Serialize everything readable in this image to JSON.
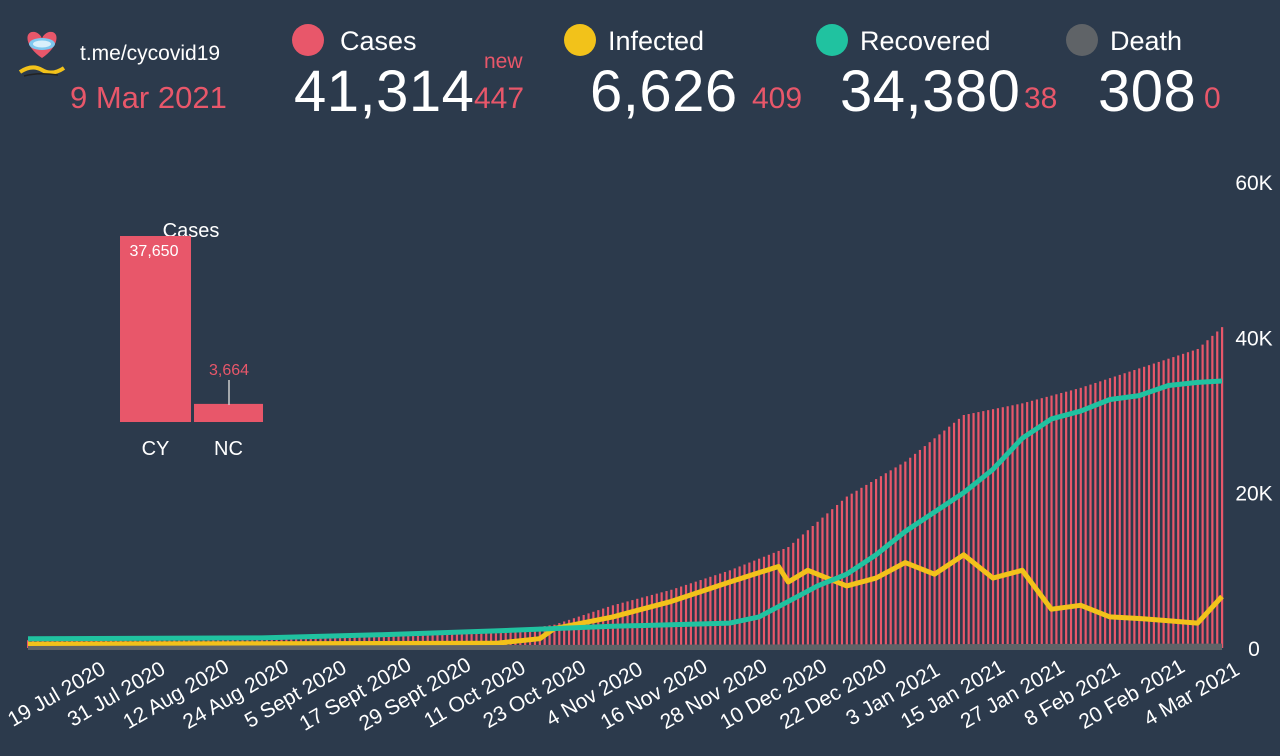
{
  "header": {
    "channel": "t.me/cycovid19",
    "date": "9 Mar 2021",
    "new_label": "new"
  },
  "stats": [
    {
      "label": "Cases",
      "value": "41,314",
      "new": "447",
      "color": "#e8576a"
    },
    {
      "label": "Infected",
      "value": "6,626",
      "new": "409",
      "color": "#f2c21a"
    },
    {
      "label": "Recovered",
      "value": "34,380",
      "new": "38",
      "color": "#20c2a0"
    },
    {
      "label": "Death",
      "value": "308",
      "new": "0",
      "color": "#5f6367"
    }
  ],
  "chart_data": [
    {
      "type": "bar",
      "title": "Cases",
      "categories": [
        "CY",
        "NC"
      ],
      "values": [
        37650,
        3664
      ],
      "value_labels": [
        "37,650",
        "3,664"
      ],
      "color": "#e8576a"
    },
    {
      "type": "bar+line",
      "y_ticks": [
        "0",
        "20K",
        "40K",
        "60K"
      ],
      "ylim": [
        0,
        60000
      ],
      "y_axis_side": "right",
      "x_tick_labels": [
        "19 Jul 2020",
        "31 Jul 2020",
        "12 Aug 2020",
        "24 Aug 2020",
        "5 Sept 2020",
        "17 Sept 2020",
        "29 Sept 2020",
        "11 Oct 2020",
        "23 Oct 2020",
        "4 Nov 2020",
        "16 Nov 2020",
        "28 Nov 2020",
        "10 Dec 2020",
        "22 Dec 2020",
        "3 Jan 2021",
        "15 Jan 2021",
        "27 Jan 2021",
        "8 Feb 2021",
        "20 Feb 2021",
        "4 Mar 2021"
      ],
      "x_start": "2020-07-07",
      "x_end": "2021-03-09",
      "series": [
        {
          "name": "Cases",
          "kind": "bar",
          "color": "#e8576a",
          "dates": [
            "2020-07-07",
            "2020-07-31",
            "2020-08-24",
            "2020-09-17",
            "2020-10-11",
            "2020-10-23",
            "2020-11-04",
            "2020-11-16",
            "2020-11-28",
            "2020-12-10",
            "2020-12-22",
            "2021-01-03",
            "2021-01-15",
            "2021-01-27",
            "2021-02-08",
            "2021-02-20",
            "2021-03-04",
            "2021-03-09"
          ],
          "values": [
            1000,
            1100,
            1300,
            1550,
            1900,
            3000,
            5500,
            7500,
            10000,
            13000,
            19500,
            24000,
            30000,
            31500,
            33500,
            36000,
            38500,
            41314
          ]
        },
        {
          "name": "Infected",
          "kind": "line",
          "color": "#f2c21a",
          "dates": [
            "2020-07-07",
            "2020-10-11",
            "2020-10-20",
            "2020-10-23",
            "2020-11-04",
            "2020-11-16",
            "2020-11-28",
            "2020-12-08",
            "2020-12-10",
            "2020-12-14",
            "2020-12-22",
            "2020-12-28",
            "2021-01-03",
            "2021-01-09",
            "2021-01-15",
            "2021-01-21",
            "2021-01-27",
            "2021-02-02",
            "2021-02-08",
            "2021-02-14",
            "2021-02-20",
            "2021-02-26",
            "2021-03-04",
            "2021-03-09"
          ],
          "values": [
            500,
            600,
            1200,
            2500,
            4000,
            6000,
            8500,
            10500,
            8500,
            10000,
            8000,
            9000,
            11000,
            9500,
            12000,
            9000,
            10000,
            5000,
            5500,
            4000,
            3800,
            3500,
            3200,
            6626
          ]
        },
        {
          "name": "Recovered",
          "kind": "line",
          "color": "#20c2a0",
          "dates": [
            "2020-07-07",
            "2020-08-24",
            "2020-09-17",
            "2020-10-11",
            "2020-11-04",
            "2020-11-28",
            "2020-12-04",
            "2020-12-10",
            "2020-12-16",
            "2020-12-22",
            "2020-12-28",
            "2021-01-03",
            "2021-01-09",
            "2021-01-15",
            "2021-01-21",
            "2021-01-27",
            "2021-02-02",
            "2021-02-08",
            "2021-02-14",
            "2021-02-20",
            "2021-02-26",
            "2021-03-04",
            "2021-03-09"
          ],
          "values": [
            1200,
            1300,
            1700,
            2200,
            2800,
            3200,
            4000,
            6000,
            8000,
            9500,
            12000,
            15000,
            17500,
            20000,
            23000,
            27000,
            29500,
            30500,
            32000,
            32500,
            33800,
            34200,
            34380
          ]
        },
        {
          "name": "Death",
          "kind": "line",
          "color": "#5f6367",
          "dates": [
            "2020-07-07",
            "2021-03-09"
          ],
          "values": [
            0,
            308
          ]
        }
      ]
    }
  ]
}
